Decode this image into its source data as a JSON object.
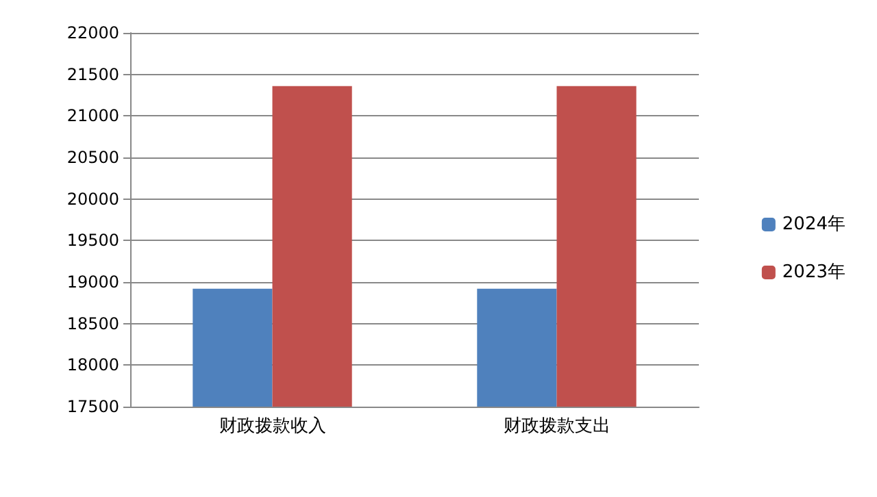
{
  "chart_data": {
    "type": "bar",
    "categories": [
      "财政拨款收入",
      "财政拨款支出"
    ],
    "series": [
      {
        "name": "2024年",
        "color": "#4f81bd",
        "values": [
          18920,
          18920
        ]
      },
      {
        "name": "2023年",
        "color": "#c0504d",
        "values": [
          21360,
          21360
        ]
      }
    ],
    "ylim": [
      17500,
      22000
    ],
    "yticks": [
      17500,
      18000,
      18500,
      19000,
      19500,
      20000,
      20500,
      21000,
      21500,
      22000
    ],
    "grid": "y",
    "legend": "right"
  }
}
